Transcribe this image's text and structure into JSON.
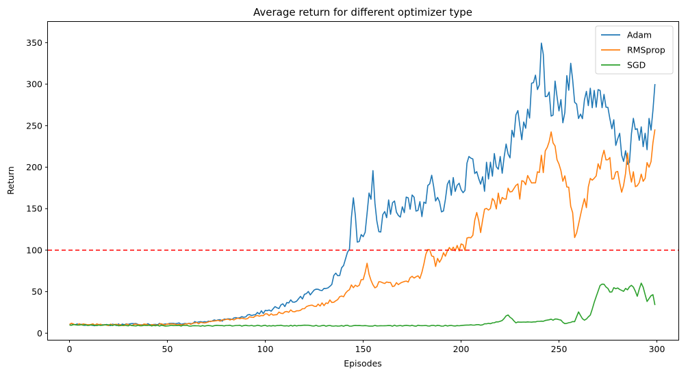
{
  "chart_data": {
    "type": "line",
    "title": "Average return for different optimizer type",
    "xlabel": "Episodes",
    "ylabel": "Return",
    "xlim": [
      -11,
      311
    ],
    "ylim": [
      -8,
      375
    ],
    "xticks": [
      0,
      50,
      100,
      150,
      200,
      250,
      300
    ],
    "yticks": [
      0,
      50,
      100,
      150,
      200,
      250,
      300,
      350
    ],
    "grid": false,
    "legend_position": "top-right",
    "reference_line": {
      "y": 100,
      "color": "#ff0000",
      "style": "dashed"
    },
    "series": [
      {
        "name": "Adam",
        "color": "#1f77b4",
        "knots": [
          [
            0,
            11
          ],
          [
            10,
            10
          ],
          [
            20,
            10
          ],
          [
            30,
            11
          ],
          [
            40,
            11
          ],
          [
            50,
            11
          ],
          [
            60,
            12
          ],
          [
            70,
            14
          ],
          [
            80,
            16
          ],
          [
            90,
            21
          ],
          [
            100,
            26
          ],
          [
            110,
            34
          ],
          [
            120,
            45
          ],
          [
            130,
            55
          ],
          [
            135,
            65
          ],
          [
            140,
            80
          ],
          [
            143,
            110
          ],
          [
            145,
            153
          ],
          [
            147,
            110
          ],
          [
            150,
            118
          ],
          [
            152,
            145
          ],
          [
            155,
            183
          ],
          [
            158,
            125
          ],
          [
            162,
            150
          ],
          [
            166,
            158
          ],
          [
            170,
            148
          ],
          [
            175,
            158
          ],
          [
            180,
            150
          ],
          [
            185,
            185
          ],
          [
            190,
            155
          ],
          [
            195,
            175
          ],
          [
            200,
            168
          ],
          [
            205,
            205
          ],
          [
            210,
            170
          ],
          [
            215,
            205
          ],
          [
            220,
            200
          ],
          [
            225,
            220
          ],
          [
            228,
            255
          ],
          [
            232,
            250
          ],
          [
            236,
            280
          ],
          [
            240,
            315
          ],
          [
            241,
            357
          ],
          [
            243,
            270
          ],
          [
            247,
            285
          ],
          [
            252,
            270
          ],
          [
            255,
            310
          ],
          [
            257,
            330
          ],
          [
            260,
            245
          ],
          [
            262,
            270
          ],
          [
            266,
            295
          ],
          [
            270,
            275
          ],
          [
            274,
            270
          ],
          [
            278,
            240
          ],
          [
            282,
            225
          ],
          [
            285,
            210
          ],
          [
            289,
            250
          ],
          [
            293,
            225
          ],
          [
            297,
            250
          ],
          [
            299,
            300
          ]
        ]
      },
      {
        "name": "RMSprop",
        "color": "#ff7f0e",
        "knots": [
          [
            0,
            11
          ],
          [
            20,
            10
          ],
          [
            40,
            10
          ],
          [
            60,
            11
          ],
          [
            70,
            13
          ],
          [
            80,
            16
          ],
          [
            90,
            18
          ],
          [
            100,
            22
          ],
          [
            110,
            25
          ],
          [
            120,
            30
          ],
          [
            130,
            35
          ],
          [
            140,
            45
          ],
          [
            145,
            57
          ],
          [
            150,
            65
          ],
          [
            152,
            85
          ],
          [
            155,
            58
          ],
          [
            160,
            60
          ],
          [
            165,
            58
          ],
          [
            170,
            62
          ],
          [
            175,
            65
          ],
          [
            180,
            70
          ],
          [
            183,
            108
          ],
          [
            187,
            85
          ],
          [
            190,
            95
          ],
          [
            195,
            100
          ],
          [
            200,
            105
          ],
          [
            205,
            110
          ],
          [
            208,
            148
          ],
          [
            210,
            130
          ],
          [
            215,
            155
          ],
          [
            220,
            160
          ],
          [
            225,
            165
          ],
          [
            230,
            172
          ],
          [
            235,
            185
          ],
          [
            240,
            195
          ],
          [
            245,
            225
          ],
          [
            248,
            230
          ],
          [
            252,
            195
          ],
          [
            255,
            170
          ],
          [
            258,
            120
          ],
          [
            262,
            150
          ],
          [
            266,
            175
          ],
          [
            270,
            200
          ],
          [
            273,
            222
          ],
          [
            277,
            190
          ],
          [
            282,
            178
          ],
          [
            285,
            210
          ],
          [
            289,
            175
          ],
          [
            292,
            185
          ],
          [
            296,
            210
          ],
          [
            299,
            241
          ]
        ]
      },
      {
        "name": "SGD",
        "color": "#2ca02c",
        "knots": [
          [
            0,
            10
          ],
          [
            50,
            9
          ],
          [
            100,
            9
          ],
          [
            150,
            9
          ],
          [
            200,
            9
          ],
          [
            210,
            10
          ],
          [
            215,
            12
          ],
          [
            220,
            14
          ],
          [
            224,
            22
          ],
          [
            228,
            13
          ],
          [
            235,
            13
          ],
          [
            240,
            14
          ],
          [
            245,
            16
          ],
          [
            250,
            17
          ],
          [
            253,
            12
          ],
          [
            258,
            14
          ],
          [
            260,
            25
          ],
          [
            263,
            15
          ],
          [
            266,
            22
          ],
          [
            268,
            38
          ],
          [
            271,
            58
          ],
          [
            273,
            62
          ],
          [
            276,
            50
          ],
          [
            280,
            55
          ],
          [
            284,
            52
          ],
          [
            287,
            58
          ],
          [
            290,
            45
          ],
          [
            292,
            60
          ],
          [
            295,
            40
          ],
          [
            298,
            46
          ],
          [
            299,
            33
          ]
        ]
      }
    ]
  }
}
